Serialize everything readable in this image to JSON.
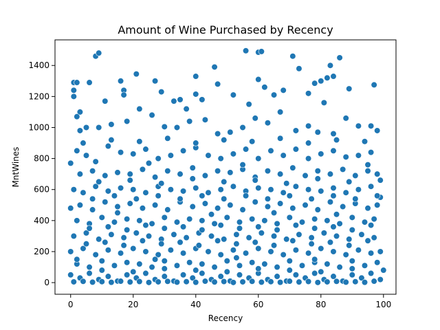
{
  "chart_data": {
    "type": "scatter",
    "title": "Amount of Wine Purchased by Recency",
    "xlabel": "Recency",
    "ylabel": "MntWines",
    "xlim": [
      -5,
      104
    ],
    "ylim": [
      -75,
      1565
    ],
    "x_ticks": [
      0,
      20,
      40,
      60,
      80,
      100
    ],
    "y_ticks": [
      0,
      200,
      400,
      600,
      800,
      1000,
      1200,
      1400
    ],
    "grid": false,
    "point_color": "#1f77b4",
    "points": [
      [
        0,
        770
      ],
      [
        1,
        1290
      ],
      [
        1,
        1240
      ],
      [
        1,
        1200
      ],
      [
        2,
        1290
      ],
      [
        3,
        1100
      ],
      [
        3,
        980
      ],
      [
        2,
        1070
      ],
      [
        8,
        1460
      ],
      [
        9,
        1480
      ],
      [
        6,
        1290
      ],
      [
        11,
        1170
      ],
      [
        16,
        1300
      ],
      [
        17,
        1240
      ],
      [
        17,
        1210
      ],
      [
        21,
        1345
      ],
      [
        27,
        1300
      ],
      [
        29,
        1230
      ],
      [
        33,
        1170
      ],
      [
        35,
        1180
      ],
      [
        40,
        1330
      ],
      [
        40,
        1215
      ],
      [
        42,
        1180
      ],
      [
        46,
        1390
      ],
      [
        47,
        1280
      ],
      [
        52,
        1210
      ],
      [
        56,
        1495
      ],
      [
        60,
        1310
      ],
      [
        60,
        1485
      ],
      [
        61,
        1490
      ],
      [
        62,
        1260
      ],
      [
        65,
        1210
      ],
      [
        68,
        1240
      ],
      [
        71,
        1460
      ],
      [
        73,
        1380
      ],
      [
        76,
        1220
      ],
      [
        78,
        1285
      ],
      [
        80,
        1300
      ],
      [
        82,
        1320
      ],
      [
        83,
        1400
      ],
      [
        84,
        1330
      ],
      [
        86,
        1450
      ],
      [
        89,
        1250
      ],
      [
        97,
        1275
      ],
      [
        5,
        1000
      ],
      [
        9,
        1000
      ],
      [
        13,
        1020
      ],
      [
        18,
        1040
      ],
      [
        22,
        1120
      ],
      [
        26,
        1080
      ],
      [
        30,
        1005
      ],
      [
        34,
        1000
      ],
      [
        38,
        1040
      ],
      [
        43,
        1050
      ],
      [
        47,
        960
      ],
      [
        51,
        970
      ],
      [
        55,
        1000
      ],
      [
        59,
        1060
      ],
      [
        63,
        1030
      ],
      [
        67,
        1100
      ],
      [
        72,
        980
      ],
      [
        76,
        1010
      ],
      [
        79,
        970
      ],
      [
        84,
        960
      ],
      [
        88,
        1060
      ],
      [
        92,
        1010
      ],
      [
        96,
        1010
      ],
      [
        98,
        980
      ],
      [
        2,
        850
      ],
      [
        5,
        820
      ],
      [
        8,
        780
      ],
      [
        12,
        880
      ],
      [
        16,
        840
      ],
      [
        20,
        830
      ],
      [
        24,
        860
      ],
      [
        28,
        800
      ],
      [
        32,
        820
      ],
      [
        36,
        850
      ],
      [
        40,
        870
      ],
      [
        44,
        820
      ],
      [
        48,
        800
      ],
      [
        52,
        830
      ],
      [
        56,
        860
      ],
      [
        60,
        800
      ],
      [
        64,
        850
      ],
      [
        68,
        820
      ],
      [
        72,
        860
      ],
      [
        76,
        800
      ],
      [
        80,
        830
      ],
      [
        84,
        850
      ],
      [
        88,
        810
      ],
      [
        92,
        820
      ],
      [
        96,
        840
      ],
      [
        3,
        700
      ],
      [
        7,
        720
      ],
      [
        11,
        690
      ],
      [
        15,
        710
      ],
      [
        19,
        700
      ],
      [
        23,
        730
      ],
      [
        27,
        680
      ],
      [
        31,
        720
      ],
      [
        35,
        700
      ],
      [
        39,
        740
      ],
      [
        43,
        690
      ],
      [
        47,
        720
      ],
      [
        51,
        710
      ],
      [
        55,
        730
      ],
      [
        59,
        680
      ],
      [
        63,
        720
      ],
      [
        67,
        700
      ],
      [
        71,
        740
      ],
      [
        75,
        690
      ],
      [
        79,
        720
      ],
      [
        83,
        700
      ],
      [
        87,
        730
      ],
      [
        91,
        690
      ],
      [
        95,
        720
      ],
      [
        98,
        700
      ],
      [
        1,
        600
      ],
      [
        4,
        580
      ],
      [
        8,
        620
      ],
      [
        12,
        590
      ],
      [
        16,
        610
      ],
      [
        20,
        600
      ],
      [
        24,
        580
      ],
      [
        28,
        620
      ],
      [
        32,
        600
      ],
      [
        36,
        590
      ],
      [
        40,
        610
      ],
      [
        44,
        580
      ],
      [
        48,
        600
      ],
      [
        52,
        620
      ],
      [
        56,
        590
      ],
      [
        60,
        610
      ],
      [
        64,
        600
      ],
      [
        68,
        580
      ],
      [
        72,
        620
      ],
      [
        76,
        600
      ],
      [
        80,
        590
      ],
      [
        84,
        610
      ],
      [
        88,
        580
      ],
      [
        92,
        600
      ],
      [
        96,
        620
      ],
      [
        99,
        550
      ],
      [
        0,
        480
      ],
      [
        3,
        500
      ],
      [
        7,
        470
      ],
      [
        11,
        520
      ],
      [
        15,
        490
      ],
      [
        19,
        510
      ],
      [
        23,
        480
      ],
      [
        27,
        500
      ],
      [
        31,
        470
      ],
      [
        35,
        520
      ],
      [
        39,
        490
      ],
      [
        43,
        510
      ],
      [
        47,
        480
      ],
      [
        51,
        500
      ],
      [
        55,
        470
      ],
      [
        59,
        520
      ],
      [
        63,
        490
      ],
      [
        67,
        510
      ],
      [
        71,
        480
      ],
      [
        75,
        500
      ],
      [
        79,
        470
      ],
      [
        83,
        520
      ],
      [
        87,
        490
      ],
      [
        91,
        510
      ],
      [
        95,
        480
      ],
      [
        98,
        500
      ],
      [
        2,
        400
      ],
      [
        6,
        380
      ],
      [
        10,
        420
      ],
      [
        14,
        390
      ],
      [
        18,
        410
      ],
      [
        22,
        400
      ],
      [
        26,
        380
      ],
      [
        30,
        420
      ],
      [
        34,
        390
      ],
      [
        38,
        410
      ],
      [
        42,
        400
      ],
      [
        46,
        380
      ],
      [
        50,
        420
      ],
      [
        54,
        390
      ],
      [
        58,
        410
      ],
      [
        62,
        400
      ],
      [
        66,
        380
      ],
      [
        70,
        420
      ],
      [
        74,
        390
      ],
      [
        78,
        410
      ],
      [
        82,
        400
      ],
      [
        86,
        380
      ],
      [
        90,
        420
      ],
      [
        94,
        390
      ],
      [
        97,
        410
      ],
      [
        1,
        300
      ],
      [
        5,
        320
      ],
      [
        9,
        280
      ],
      [
        13,
        310
      ],
      [
        17,
        290
      ],
      [
        21,
        320
      ],
      [
        25,
        300
      ],
      [
        29,
        280
      ],
      [
        33,
        310
      ],
      [
        37,
        290
      ],
      [
        41,
        320
      ],
      [
        45,
        300
      ],
      [
        49,
        280
      ],
      [
        53,
        310
      ],
      [
        57,
        290
      ],
      [
        61,
        320
      ],
      [
        65,
        300
      ],
      [
        69,
        280
      ],
      [
        73,
        310
      ],
      [
        77,
        290
      ],
      [
        81,
        320
      ],
      [
        85,
        300
      ],
      [
        89,
        280
      ],
      [
        93,
        310
      ],
      [
        97,
        290
      ],
      [
        0,
        200
      ],
      [
        4,
        220
      ],
      [
        8,
        180
      ],
      [
        12,
        210
      ],
      [
        16,
        190
      ],
      [
        20,
        220
      ],
      [
        24,
        200
      ],
      [
        28,
        180
      ],
      [
        32,
        210
      ],
      [
        36,
        190
      ],
      [
        40,
        220
      ],
      [
        44,
        200
      ],
      [
        48,
        180
      ],
      [
        52,
        210
      ],
      [
        56,
        190
      ],
      [
        60,
        220
      ],
      [
        64,
        200
      ],
      [
        68,
        180
      ],
      [
        72,
        210
      ],
      [
        76,
        190
      ],
      [
        80,
        220
      ],
      [
        84,
        200
      ],
      [
        88,
        180
      ],
      [
        92,
        210
      ],
      [
        96,
        190
      ],
      [
        99,
        200
      ],
      [
        2,
        120
      ],
      [
        6,
        100
      ],
      [
        10,
        140
      ],
      [
        14,
        110
      ],
      [
        18,
        130
      ],
      [
        22,
        120
      ],
      [
        26,
        100
      ],
      [
        30,
        140
      ],
      [
        34,
        110
      ],
      [
        38,
        130
      ],
      [
        42,
        120
      ],
      [
        46,
        100
      ],
      [
        50,
        140
      ],
      [
        54,
        110
      ],
      [
        58,
        130
      ],
      [
        62,
        120
      ],
      [
        66,
        100
      ],
      [
        70,
        140
      ],
      [
        74,
        110
      ],
      [
        78,
        130
      ],
      [
        82,
        120
      ],
      [
        86,
        100
      ],
      [
        90,
        140
      ],
      [
        94,
        110
      ],
      [
        98,
        130
      ],
      [
        0,
        50
      ],
      [
        3,
        30
      ],
      [
        6,
        60
      ],
      [
        9,
        20
      ],
      [
        12,
        40
      ],
      [
        15,
        10
      ],
      [
        18,
        50
      ],
      [
        21,
        30
      ],
      [
        24,
        60
      ],
      [
        27,
        20
      ],
      [
        30,
        40
      ],
      [
        33,
        10
      ],
      [
        36,
        50
      ],
      [
        39,
        30
      ],
      [
        42,
        60
      ],
      [
        45,
        20
      ],
      [
        48,
        40
      ],
      [
        51,
        10
      ],
      [
        54,
        50
      ],
      [
        57,
        30
      ],
      [
        60,
        60
      ],
      [
        63,
        20
      ],
      [
        66,
        40
      ],
      [
        69,
        10
      ],
      [
        72,
        50
      ],
      [
        75,
        30
      ],
      [
        78,
        60
      ],
      [
        81,
        20
      ],
      [
        84,
        40
      ],
      [
        87,
        10
      ],
      [
        90,
        50
      ],
      [
        93,
        30
      ],
      [
        96,
        60
      ],
      [
        99,
        20
      ],
      [
        1,
        5
      ],
      [
        4,
        8
      ],
      [
        7,
        3
      ],
      [
        10,
        6
      ],
      [
        13,
        2
      ],
      [
        16,
        9
      ],
      [
        19,
        4
      ],
      [
        22,
        7
      ],
      [
        25,
        1
      ],
      [
        28,
        5
      ],
      [
        31,
        8
      ],
      [
        34,
        3
      ],
      [
        37,
        6
      ],
      [
        40,
        2
      ],
      [
        43,
        9
      ],
      [
        46,
        4
      ],
      [
        49,
        7
      ],
      [
        52,
        1
      ],
      [
        55,
        5
      ],
      [
        58,
        8
      ],
      [
        61,
        3
      ],
      [
        64,
        6
      ],
      [
        67,
        2
      ],
      [
        70,
        9
      ],
      [
        73,
        4
      ],
      [
        76,
        7
      ],
      [
        79,
        1
      ],
      [
        82,
        5
      ],
      [
        85,
        8
      ],
      [
        88,
        3
      ],
      [
        91,
        6
      ],
      [
        94,
        2
      ],
      [
        97,
        9
      ],
      [
        5,
        250
      ],
      [
        11,
        260
      ],
      [
        17,
        240
      ],
      [
        23,
        270
      ],
      [
        29,
        250
      ],
      [
        35,
        260
      ],
      [
        41,
        240
      ],
      [
        47,
        270
      ],
      [
        53,
        250
      ],
      [
        59,
        260
      ],
      [
        65,
        240
      ],
      [
        71,
        270
      ],
      [
        77,
        250
      ],
      [
        83,
        260
      ],
      [
        89,
        240
      ],
      [
        95,
        270
      ],
      [
        7,
        540
      ],
      [
        14,
        560
      ],
      [
        21,
        540
      ],
      [
        28,
        560
      ],
      [
        35,
        540
      ],
      [
        42,
        560
      ],
      [
        49,
        540
      ],
      [
        56,
        560
      ],
      [
        63,
        540
      ],
      [
        70,
        560
      ],
      [
        77,
        540
      ],
      [
        84,
        560
      ],
      [
        91,
        540
      ],
      [
        98,
        560
      ],
      [
        4,
        900
      ],
      [
        13,
        920
      ],
      [
        22,
        910
      ],
      [
        31,
        930
      ],
      [
        40,
        900
      ],
      [
        49,
        920
      ],
      [
        58,
        910
      ],
      [
        67,
        930
      ],
      [
        76,
        900
      ],
      [
        85,
        920
      ],
      [
        94,
        910
      ],
      [
        6,
        350
      ],
      [
        12,
        360
      ],
      [
        18,
        340
      ],
      [
        24,
        370
      ],
      [
        30,
        350
      ],
      [
        36,
        360
      ],
      [
        42,
        340
      ],
      [
        48,
        370
      ],
      [
        54,
        350
      ],
      [
        60,
        360
      ],
      [
        66,
        340
      ],
      [
        72,
        370
      ],
      [
        78,
        350
      ],
      [
        84,
        360
      ],
      [
        90,
        340
      ],
      [
        96,
        370
      ],
      [
        9,
        650
      ],
      [
        19,
        660
      ],
      [
        29,
        640
      ],
      [
        39,
        670
      ],
      [
        49,
        650
      ],
      [
        59,
        660
      ],
      [
        69,
        640
      ],
      [
        79,
        670
      ],
      [
        89,
        650
      ],
      [
        99,
        660
      ],
      [
        10,
        80
      ],
      [
        20,
        70
      ],
      [
        30,
        90
      ],
      [
        40,
        80
      ],
      [
        50,
        70
      ],
      [
        60,
        90
      ],
      [
        70,
        80
      ],
      [
        80,
        70
      ],
      [
        90,
        90
      ],
      [
        100,
        80
      ],
      [
        2,
        150
      ],
      [
        27,
        150
      ],
      [
        53,
        160
      ],
      [
        78,
        150
      ],
      [
        45,
        440
      ],
      [
        65,
        450
      ],
      [
        85,
        440
      ],
      [
        15,
        450
      ],
      [
        55,
        760
      ],
      [
        25,
        770
      ],
      [
        95,
        760
      ],
      [
        37,
        1120
      ],
      [
        57,
        1150
      ],
      [
        81,
        1160
      ]
    ]
  }
}
